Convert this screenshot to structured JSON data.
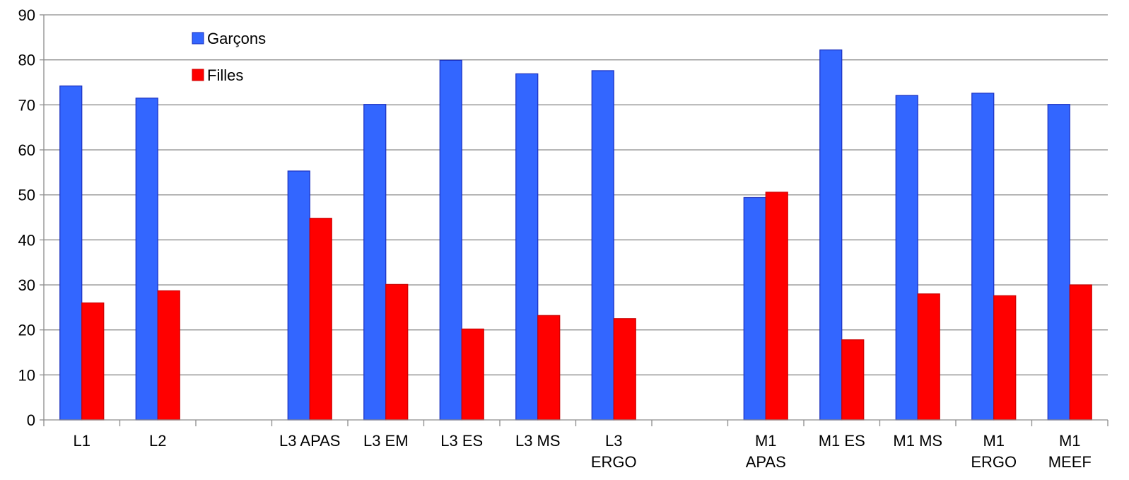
{
  "chart_data": {
    "type": "bar",
    "categories": [
      [
        "L1"
      ],
      [
        "L2"
      ],
      [],
      [
        "L3 APAS"
      ],
      [
        "L3 EM"
      ],
      [
        "L3 ES"
      ],
      [
        "L3 MS"
      ],
      [
        "L3",
        "ERGO"
      ],
      [],
      [
        "M1",
        "APAS"
      ],
      [
        "M1 ES"
      ],
      [
        "M1 MS"
      ],
      [
        "M1",
        "ERGO"
      ],
      [
        "M1",
        "MEEF"
      ]
    ],
    "series": [
      {
        "name": "Garçons",
        "color": "#3366FF",
        "values": [
          74.2,
          71.5,
          null,
          55.3,
          70.1,
          79.9,
          76.9,
          77.6,
          null,
          49.4,
          82.2,
          72.1,
          72.6,
          70.1
        ]
      },
      {
        "name": "Filles",
        "color": "#FF0000",
        "values": [
          26.0,
          28.7,
          null,
          44.8,
          30.1,
          20.2,
          23.2,
          22.5,
          null,
          50.6,
          17.8,
          28.0,
          27.6,
          30.0
        ]
      }
    ],
    "ylim": [
      0,
      90
    ],
    "yticks": [
      "0",
      "10",
      "20",
      "30",
      "40",
      "50",
      "60",
      "70",
      "80",
      "90"
    ],
    "grid": true,
    "legend_position": "top-left-inside"
  }
}
